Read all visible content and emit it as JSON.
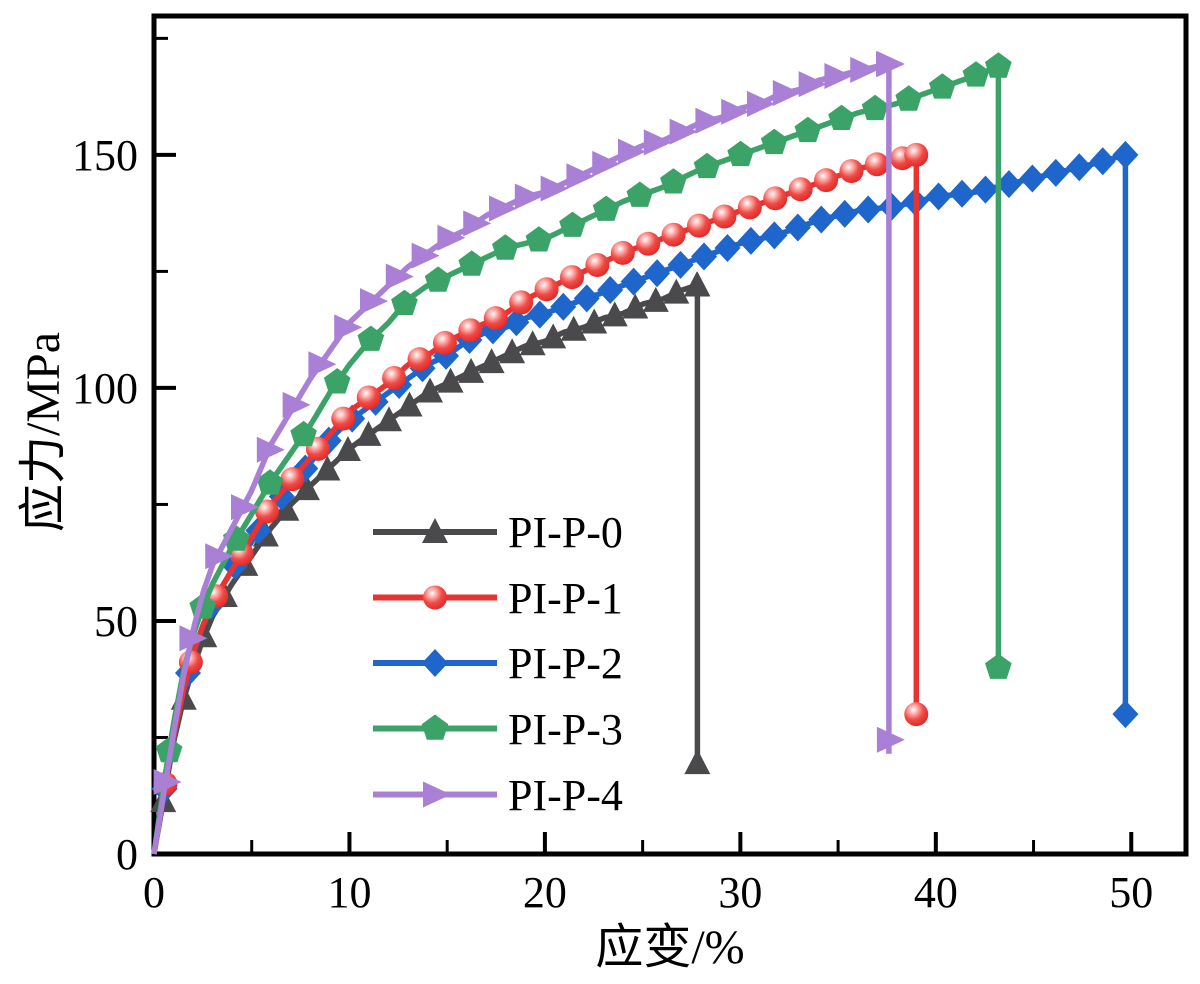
{
  "figure": {
    "background": "#ffffff",
    "frame_color": "#000000",
    "text_color": "#000000"
  },
  "chart_data": {
    "type": "line",
    "title": "",
    "xlabel": "应变/%",
    "ylabel": "应力/MPa",
    "xlim": [
      0,
      52.8
    ],
    "ylim": [
      0,
      179.8
    ],
    "x_major_ticks": [
      0,
      10,
      20,
      30,
      40,
      50
    ],
    "x_minor_ticks": [
      5,
      15,
      25,
      35,
      45
    ],
    "y_major_ticks": [
      0,
      50,
      100,
      150
    ],
    "y_minor_ticks": [
      25,
      75,
      125,
      175
    ],
    "grid": false,
    "legend_position": "inside-lower-center",
    "series": [
      {
        "name": "PI-P-0",
        "color": "#4a4a4c",
        "marker": "triangle-up",
        "marker_interval": 1.05,
        "points": [
          [
            0,
            0
          ],
          [
            0.5,
            12
          ],
          [
            1,
            24
          ],
          [
            1.5,
            33
          ],
          [
            2,
            40
          ],
          [
            2.5,
            46
          ],
          [
            3,
            51
          ],
          [
            4,
            58
          ],
          [
            5,
            64
          ],
          [
            6,
            70
          ],
          [
            7,
            75
          ],
          [
            8,
            79
          ],
          [
            9,
            83
          ],
          [
            10,
            87
          ],
          [
            11,
            90
          ],
          [
            12,
            93
          ],
          [
            13,
            96
          ],
          [
            14,
            99
          ],
          [
            15,
            101
          ],
          [
            16,
            103
          ],
          [
            17,
            105
          ],
          [
            18,
            107
          ],
          [
            19,
            109
          ],
          [
            20,
            110
          ],
          [
            21,
            112
          ],
          [
            22,
            113
          ],
          [
            23,
            115
          ],
          [
            24,
            116
          ],
          [
            25,
            118
          ],
          [
            26,
            119
          ],
          [
            27,
            121
          ],
          [
            27.8,
            122
          ]
        ],
        "break": {
          "strain": 27.8,
          "stress": 122,
          "marker_at": 19.5,
          "line_to": 19.5
        }
      },
      {
        "name": "PI-P-1",
        "color": "#e73331",
        "marker": "circle",
        "marker_interval": 1.3,
        "points": [
          [
            0,
            0
          ],
          [
            0.5,
            13
          ],
          [
            1,
            25
          ],
          [
            1.5,
            35
          ],
          [
            2,
            43
          ],
          [
            2.5,
            49
          ],
          [
            3,
            54
          ],
          [
            4,
            61
          ],
          [
            5,
            68
          ],
          [
            6,
            75
          ],
          [
            7,
            80
          ],
          [
            8,
            85
          ],
          [
            9,
            90
          ],
          [
            10,
            95
          ],
          [
            11,
            98
          ],
          [
            12,
            101
          ],
          [
            13,
            105
          ],
          [
            14,
            107
          ],
          [
            15,
            110
          ],
          [
            16,
            112
          ],
          [
            17,
            114
          ],
          [
            18,
            116
          ],
          [
            19,
            119
          ],
          [
            20,
            121
          ],
          [
            22,
            125
          ],
          [
            24,
            129
          ],
          [
            26,
            132
          ],
          [
            28,
            135
          ],
          [
            30,
            138
          ],
          [
            32,
            141
          ],
          [
            34,
            144
          ],
          [
            36,
            147
          ],
          [
            38,
            149
          ],
          [
            39,
            150
          ]
        ],
        "break": {
          "strain": 39,
          "stress": 150,
          "marker_at": 30,
          "line_to": 30
        }
      },
      {
        "name": "PI-P-2",
        "color": "#1e66cb",
        "marker": "diamond",
        "marker_interval": 1.2,
        "points": [
          [
            0,
            0
          ],
          [
            0.5,
            13
          ],
          [
            1,
            25
          ],
          [
            1.5,
            35
          ],
          [
            2,
            43
          ],
          [
            2.5,
            49
          ],
          [
            3,
            54
          ],
          [
            4,
            61
          ],
          [
            5,
            67
          ],
          [
            6,
            74
          ],
          [
            7,
            79
          ],
          [
            8,
            84
          ],
          [
            9,
            89
          ],
          [
            10,
            93
          ],
          [
            11,
            96
          ],
          [
            12,
            99
          ],
          [
            13,
            102
          ],
          [
            14,
            105
          ],
          [
            15,
            107
          ],
          [
            16,
            110
          ],
          [
            17,
            112
          ],
          [
            18,
            113
          ],
          [
            19,
            115
          ],
          [
            20,
            116
          ],
          [
            22,
            119
          ],
          [
            24,
            122
          ],
          [
            26,
            125
          ],
          [
            28,
            128
          ],
          [
            30,
            131
          ],
          [
            32,
            133
          ],
          [
            34,
            136
          ],
          [
            36,
            138
          ],
          [
            38,
            139
          ],
          [
            40,
            141
          ],
          [
            42,
            142
          ],
          [
            44,
            144
          ],
          [
            46,
            146
          ],
          [
            48,
            148
          ],
          [
            49.7,
            150
          ]
        ],
        "break": {
          "strain": 49.7,
          "stress": 150,
          "marker_at": 30,
          "line_to": 30
        }
      },
      {
        "name": "PI-P-3",
        "color": "#3ba367",
        "marker": "pentagon",
        "marker_interval": 1.72,
        "points": [
          [
            0,
            0
          ],
          [
            0.5,
            15
          ],
          [
            1,
            28
          ],
          [
            1.5,
            39
          ],
          [
            2,
            47
          ],
          [
            2.5,
            53
          ],
          [
            3,
            58
          ],
          [
            4,
            66
          ],
          [
            5,
            73
          ],
          [
            6,
            80
          ],
          [
            7,
            86
          ],
          [
            8,
            92
          ],
          [
            9,
            99
          ],
          [
            10,
            105
          ],
          [
            11,
            110
          ],
          [
            12,
            114
          ],
          [
            13,
            119
          ],
          [
            14,
            122
          ],
          [
            15,
            124
          ],
          [
            16,
            126
          ],
          [
            17,
            128
          ],
          [
            18,
            130
          ],
          [
            19,
            131
          ],
          [
            20,
            132
          ],
          [
            22,
            136
          ],
          [
            24,
            140
          ],
          [
            26,
            143
          ],
          [
            28,
            147
          ],
          [
            30,
            150
          ],
          [
            32,
            153
          ],
          [
            34,
            156
          ],
          [
            36,
            159
          ],
          [
            38,
            161
          ],
          [
            40,
            164
          ],
          [
            42,
            167
          ],
          [
            43.2,
            169
          ]
        ],
        "break": {
          "strain": 43.2,
          "stress": 169,
          "marker_at": 40,
          "line_to": 40
        }
      },
      {
        "name": "PI-P-4",
        "color": "#a980d6",
        "marker": "triangle-right",
        "marker_interval": 1.32,
        "points": [
          [
            0,
            0
          ],
          [
            0.5,
            13
          ],
          [
            1,
            26
          ],
          [
            1.5,
            38
          ],
          [
            2,
            48
          ],
          [
            2.5,
            56
          ],
          [
            3,
            62
          ],
          [
            4,
            70
          ],
          [
            5,
            78
          ],
          [
            6,
            88
          ],
          [
            7,
            95
          ],
          [
            8,
            102
          ],
          [
            9,
            108
          ],
          [
            10,
            114
          ],
          [
            11,
            118
          ],
          [
            12,
            122
          ],
          [
            13,
            126
          ],
          [
            14,
            129
          ],
          [
            15,
            132
          ],
          [
            16,
            134
          ],
          [
            17,
            137
          ],
          [
            18,
            139
          ],
          [
            19,
            141
          ],
          [
            20,
            142
          ],
          [
            21,
            144
          ],
          [
            22,
            146
          ],
          [
            23,
            148
          ],
          [
            24,
            150
          ],
          [
            25,
            152
          ],
          [
            26,
            153
          ],
          [
            27,
            155
          ],
          [
            28,
            157
          ],
          [
            29,
            158
          ],
          [
            30,
            160
          ],
          [
            31,
            161
          ],
          [
            32,
            163
          ],
          [
            33,
            164
          ],
          [
            34,
            166
          ],
          [
            35,
            167
          ],
          [
            36,
            168
          ],
          [
            37,
            169
          ],
          [
            37.6,
            169.5
          ]
        ],
        "break": {
          "strain": 37.6,
          "stress": 169.5,
          "marker_at": 24.5,
          "line_to": 21.5
        }
      }
    ],
    "draw_order": [
      0,
      2,
      1,
      3,
      4
    ]
  }
}
